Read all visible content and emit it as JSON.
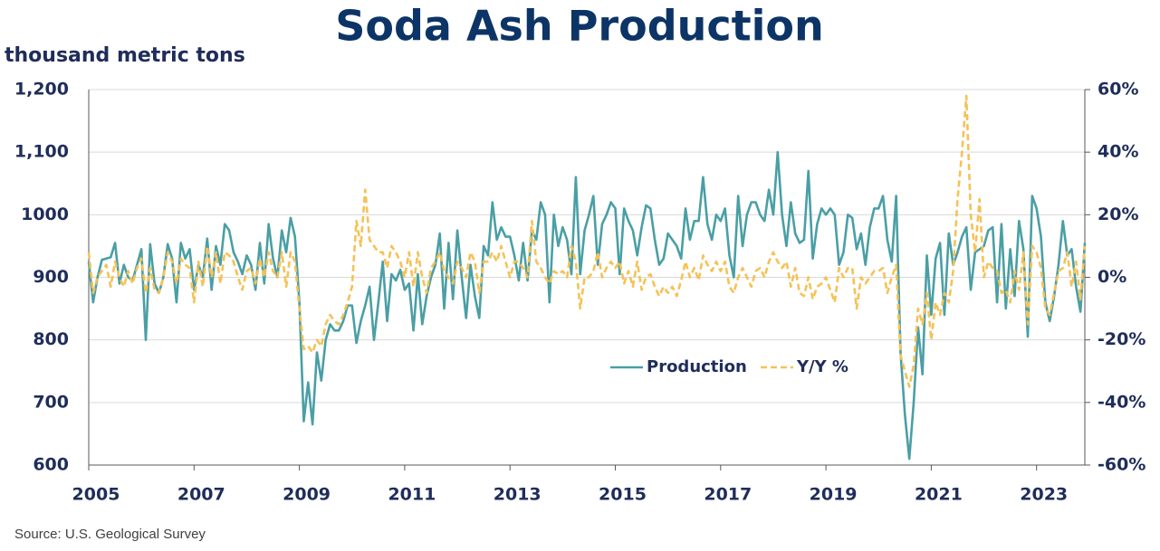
{
  "chart_data": {
    "type": "line",
    "title": "Soda Ash Production",
    "y_axis_label": "thousand metric tons",
    "source": "Source:  U.S. Geological Survey",
    "categories": [
      "2005",
      null,
      null,
      null,
      null,
      null,
      null,
      null,
      null,
      null,
      null,
      null,
      null,
      null,
      null,
      null,
      null,
      null,
      null,
      null,
      null,
      null,
      null,
      null,
      "2007",
      null,
      null,
      null,
      null,
      null,
      null,
      null,
      null,
      null,
      null,
      null,
      null,
      null,
      null,
      null,
      null,
      null,
      null,
      null,
      null,
      null,
      null,
      null,
      "2009",
      null,
      null,
      null,
      null,
      null,
      null,
      null,
      null,
      null,
      null,
      null,
      null,
      null,
      null,
      null,
      null,
      null,
      null,
      null,
      null,
      null,
      null,
      null,
      "2011",
      null,
      null,
      null,
      null,
      null,
      null,
      null,
      null,
      null,
      null,
      null,
      null,
      null,
      null,
      null,
      null,
      null,
      null,
      null,
      null,
      null,
      null,
      null,
      "2013",
      null,
      null,
      null,
      null,
      null,
      null,
      null,
      null,
      null,
      null,
      null,
      null,
      null,
      null,
      null,
      null,
      null,
      null,
      null,
      null,
      null,
      null,
      null,
      "2015",
      null,
      null,
      null,
      null,
      null,
      null,
      null,
      null,
      null,
      null,
      null,
      null,
      null,
      null,
      null,
      null,
      null,
      null,
      null,
      null,
      null,
      null,
      null,
      "2017",
      null,
      null,
      null,
      null,
      null,
      null,
      null,
      null,
      null,
      null,
      null,
      null,
      null,
      null,
      null,
      null,
      null,
      null,
      null,
      null,
      null,
      null,
      null,
      "2019",
      null,
      null,
      null,
      null,
      null,
      null,
      null,
      null,
      null,
      null,
      null,
      null,
      null,
      null,
      null,
      null,
      null,
      null,
      null,
      null,
      null,
      null,
      null,
      "2021",
      null,
      null,
      null,
      null,
      null,
      null,
      null,
      null,
      null,
      null,
      null,
      null,
      null,
      null,
      null,
      null,
      null,
      null,
      null,
      null,
      null,
      null,
      null,
      "2023",
      null,
      null,
      null,
      null,
      null,
      null,
      null,
      null,
      null,
      null,
      null
    ],
    "series": [
      {
        "name": "Production",
        "color": "#4a9fa5",
        "dashed": false,
        "values": [
          925,
          860,
          900,
          928,
          930,
          932,
          955,
          890,
          920,
          900,
          895,
          920,
          945,
          800,
          953,
          890,
          875,
          900,
          953,
          930,
          860,
          955,
          930,
          945,
          880,
          920,
          900,
          962,
          880,
          950,
          920,
          985,
          975,
          940,
          925,
          905,
          935,
          920,
          880,
          955,
          890,
          985,
          930,
          900,
          975,
          940,
          995,
          965,
          860,
          670,
          732,
          665,
          780,
          735,
          800,
          825,
          815,
          815,
          830,
          855,
          855,
          795,
          830,
          855,
          885,
          800,
          860,
          925,
          830,
          905,
          895,
          912,
          880,
          890,
          815,
          905,
          825,
          870,
          900,
          920,
          970,
          850,
          955,
          865,
          975,
          900,
          835,
          920,
          870,
          835,
          950,
          935,
          1020,
          960,
          980,
          965,
          965,
          935,
          895,
          955,
          895,
          975,
          960,
          1020,
          1000,
          860,
          1000,
          950,
          980,
          960,
          905,
          1060,
          905,
          975,
          1000,
          1030,
          920,
          985,
          1000,
          1020,
          1010,
          905,
          1010,
          990,
          975,
          935,
          980,
          1015,
          1010,
          960,
          920,
          930,
          970,
          960,
          950,
          930,
          1010,
          960,
          990,
          990,
          1060,
          985,
          960,
          1000,
          990,
          1010,
          935,
          900,
          1030,
          950,
          1000,
          1020,
          1020,
          1000,
          990,
          1040,
          1000,
          1100,
          1000,
          950,
          1020,
          970,
          955,
          960,
          1070,
          930,
          985,
          1010,
          1000,
          1010,
          1000,
          920,
          940,
          1000,
          995,
          945,
          970,
          920,
          980,
          1010,
          1010,
          1030,
          960,
          925,
          1030,
          780,
          680,
          610,
          700,
          820,
          745,
          935,
          840,
          930,
          955,
          840,
          970,
          920,
          940,
          965,
          980,
          880,
          940,
          945,
          950,
          975,
          980,
          860,
          985,
          850,
          945,
          870,
          990,
          945,
          805,
          1030,
          1010,
          965,
          860,
          830,
          870,
          920,
          990,
          935,
          945,
          885,
          845,
          955
        ]
      },
      {
        "name": "Y/Y %",
        "color": "#f5c257",
        "dashed": true,
        "axis": "y2",
        "values": [
          8,
          -5,
          0,
          2,
          4,
          -3,
          5,
          0,
          -3,
          2,
          -2,
          3,
          6,
          -5,
          3,
          -4,
          -5,
          0,
          8,
          5,
          -2,
          6,
          4,
          3,
          -8,
          5,
          -3,
          10,
          0,
          8,
          -2,
          8,
          7,
          5,
          0,
          -4,
          2,
          3,
          -2,
          6,
          0,
          8,
          2,
          0,
          8,
          -3,
          8,
          5,
          -10,
          -23,
          -22,
          -24,
          -20,
          -22,
          -15,
          -12,
          -14,
          -15,
          -12,
          -8,
          -3,
          18,
          10,
          28,
          12,
          10,
          8,
          8,
          3,
          10,
          8,
          5,
          0,
          8,
          -3,
          8,
          0,
          -5,
          3,
          5,
          8,
          2,
          0,
          -2,
          5,
          3,
          0,
          8,
          5,
          -5,
          5,
          5,
          8,
          5,
          10,
          5,
          0,
          5,
          5,
          3,
          0,
          18,
          5,
          3,
          0,
          -2,
          2,
          1,
          2,
          0,
          10,
          5,
          -10,
          0,
          0,
          2,
          8,
          0,
          3,
          5,
          3,
          5,
          -2,
          2,
          -3,
          5,
          -4,
          0,
          1,
          -3,
          -6,
          -3,
          -5,
          -3,
          -6,
          -1,
          5,
          0,
          3,
          -1,
          7,
          4,
          2,
          5,
          2,
          5,
          -3,
          -5,
          0,
          3,
          0,
          -3,
          2,
          3,
          0,
          5,
          8,
          5,
          3,
          5,
          -3,
          3,
          -5,
          -6,
          0,
          -7,
          -3,
          -2,
          0,
          -4,
          -8,
          3,
          0,
          3,
          3,
          -10,
          0,
          -2,
          0,
          2,
          2,
          3,
          -5,
          0,
          4,
          -25,
          -30,
          -35,
          -28,
          -10,
          -15,
          -5,
          -20,
          -8,
          -12,
          -5,
          -8,
          2,
          25,
          40,
          58,
          20,
          8,
          25,
          0,
          5,
          3,
          2,
          -5,
          -4,
          -8,
          2,
          -4,
          8,
          -15,
          10,
          8,
          3,
          -10,
          -12,
          -5,
          2,
          3,
          8,
          -3,
          5,
          -7,
          10
        ]
      }
    ],
    "ylim": [
      600,
      1200
    ],
    "yticks": [
      600,
      700,
      800,
      900,
      1000,
      {
        "value": 1100,
        "label": "1,100"
      },
      {
        "value": 1200,
        "label": "1,200"
      }
    ],
    "y2lim": [
      -60,
      60
    ],
    "y2ticks": [
      {
        "value": -60,
        "label": "-60%"
      },
      {
        "value": -40,
        "label": "-40%"
      },
      {
        "value": -20,
        "label": "-20%"
      },
      {
        "value": 0,
        "label": "0%"
      },
      {
        "value": 20,
        "label": "20%"
      },
      {
        "value": 40,
        "label": "40%"
      },
      {
        "value": 60,
        "label": "60%"
      }
    ],
    "grid": true
  }
}
